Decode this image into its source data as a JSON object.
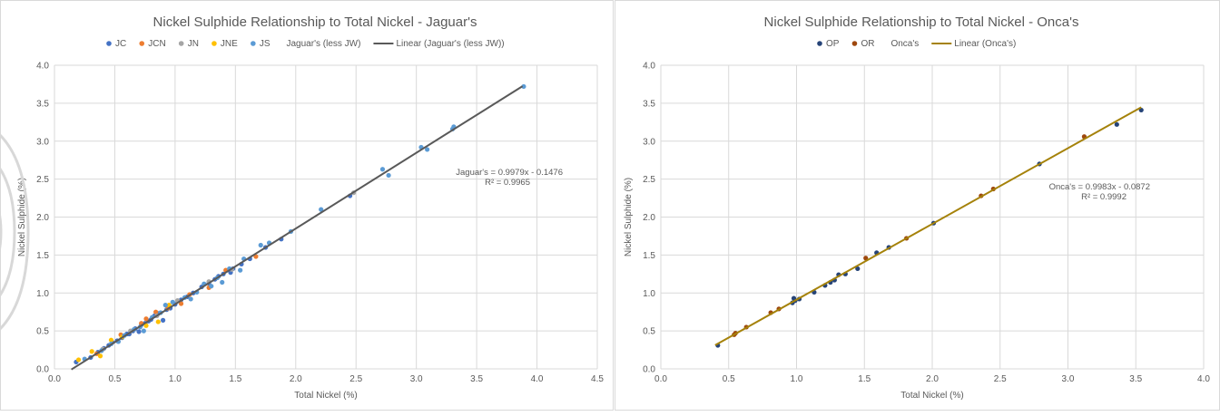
{
  "chart_data": [
    {
      "type": "scatter",
      "title": "Nickel Sulphide Relationship to Total Nickel - Jaguar's",
      "xlabel": "Total Nickel (%)",
      "ylabel": "Nickel Sulphide (%)",
      "xlim": [
        0,
        4.5
      ],
      "ylim": [
        0,
        4.0
      ],
      "xticks": [
        "0.0",
        "0.5",
        "1.0",
        "1.5",
        "2.0",
        "2.5",
        "3.0",
        "3.5",
        "4.0",
        "4.5"
      ],
      "yticks": [
        "0.0",
        "0.5",
        "1.0",
        "1.5",
        "2.0",
        "2.5",
        "3.0",
        "3.5",
        "4.0"
      ],
      "grid": true,
      "legend_position": "top",
      "legend": [
        {
          "label": "JC",
          "kind": "marker",
          "color": "#4472c4"
        },
        {
          "label": "JCN",
          "kind": "marker",
          "color": "#ed7d31"
        },
        {
          "label": "JN",
          "kind": "marker",
          "color": "#a5a5a5"
        },
        {
          "label": "JNE",
          "kind": "marker",
          "color": "#ffc000"
        },
        {
          "label": "JS",
          "kind": "marker",
          "color": "#5b9bd5"
        },
        {
          "label": "Jaguar's (less JW)",
          "kind": "none",
          "color": "#ffffff"
        },
        {
          "label": "Linear (Jaguar's (less JW))",
          "kind": "line",
          "color": "#595959"
        }
      ],
      "trendline": {
        "slope": 0.9979,
        "intercept": -0.1476,
        "x_range": [
          0.14,
          3.88
        ],
        "color": "#595959"
      },
      "equation": [
        "Jaguar's = 0.9979x - 0.1476",
        "R² = 0.9965"
      ],
      "series": [
        {
          "name": "JC",
          "color": "#4472c4",
          "points": [
            [
              0.18,
              0.09
            ],
            [
              0.3,
              0.15
            ],
            [
              0.36,
              0.22
            ],
            [
              0.41,
              0.27
            ],
            [
              0.45,
              0.31
            ],
            [
              0.48,
              0.35
            ],
            [
              0.52,
              0.37
            ],
            [
              0.56,
              0.41
            ],
            [
              0.6,
              0.46
            ],
            [
              0.62,
              0.46
            ],
            [
              0.65,
              0.5
            ],
            [
              0.67,
              0.53
            ],
            [
              0.7,
              0.49
            ],
            [
              0.72,
              0.58
            ],
            [
              0.75,
              0.6
            ],
            [
              0.78,
              0.63
            ],
            [
              0.8,
              0.65
            ],
            [
              0.83,
              0.7
            ],
            [
              0.86,
              0.73
            ],
            [
              0.9,
              0.64
            ],
            [
              0.93,
              0.78
            ],
            [
              0.96,
              0.8
            ],
            [
              1.0,
              0.85
            ],
            [
              1.05,
              0.91
            ],
            [
              1.1,
              0.95
            ],
            [
              1.15,
              1.0
            ],
            [
              1.22,
              1.08
            ],
            [
              1.28,
              1.13
            ],
            [
              1.33,
              1.18
            ],
            [
              1.36,
              1.22
            ],
            [
              1.4,
              1.25
            ],
            [
              1.46,
              1.27
            ],
            [
              1.48,
              1.32
            ],
            [
              1.55,
              1.38
            ],
            [
              1.62,
              1.45
            ],
            [
              1.75,
              1.6
            ],
            [
              1.88,
              1.71
            ],
            [
              2.45,
              2.28
            ]
          ]
        },
        {
          "name": "JCN",
          "color": "#ed7d31",
          "points": [
            [
              0.35,
              0.2
            ],
            [
              0.55,
              0.45
            ],
            [
              0.72,
              0.6
            ],
            [
              0.76,
              0.66
            ],
            [
              0.84,
              0.75
            ],
            [
              0.94,
              0.8
            ],
            [
              1.05,
              0.86
            ],
            [
              1.12,
              0.98
            ],
            [
              1.28,
              1.07
            ],
            [
              1.42,
              1.3
            ],
            [
              1.67,
              1.48
            ]
          ]
        },
        {
          "name": "JN",
          "color": "#a5a5a5",
          "points": [
            [
              0.4,
              0.26
            ],
            [
              0.63,
              0.5
            ],
            [
              0.85,
              0.7
            ],
            [
              1.02,
              0.9
            ],
            [
              1.28,
              1.15
            ],
            [
              1.47,
              1.31
            ],
            [
              2.48,
              2.32
            ]
          ]
        },
        {
          "name": "JNE",
          "color": "#ffc000",
          "points": [
            [
              0.2,
              0.12
            ],
            [
              0.31,
              0.23
            ],
            [
              0.38,
              0.17
            ],
            [
              0.47,
              0.38
            ],
            [
              0.56,
              0.42
            ],
            [
              0.76,
              0.57
            ],
            [
              0.86,
              0.62
            ],
            [
              0.95,
              0.84
            ]
          ]
        },
        {
          "name": "JS",
          "color": "#5b9bd5",
          "points": [
            [
              0.25,
              0.13
            ],
            [
              0.39,
              0.24
            ],
            [
              0.47,
              0.33
            ],
            [
              0.53,
              0.36
            ],
            [
              0.58,
              0.44
            ],
            [
              0.66,
              0.52
            ],
            [
              0.71,
              0.55
            ],
            [
              0.74,
              0.5
            ],
            [
              0.81,
              0.68
            ],
            [
              0.88,
              0.74
            ],
            [
              0.92,
              0.84
            ],
            [
              0.98,
              0.88
            ],
            [
              1.08,
              0.94
            ],
            [
              1.13,
              0.92
            ],
            [
              1.18,
              1.01
            ],
            [
              1.24,
              1.12
            ],
            [
              1.3,
              1.09
            ],
            [
              1.35,
              1.2
            ],
            [
              1.39,
              1.14
            ],
            [
              1.45,
              1.32
            ],
            [
              1.54,
              1.3
            ],
            [
              1.57,
              1.45
            ],
            [
              1.71,
              1.63
            ],
            [
              1.78,
              1.66
            ],
            [
              1.96,
              1.81
            ],
            [
              2.21,
              2.1
            ],
            [
              2.72,
              2.63
            ],
            [
              2.77,
              2.55
            ],
            [
              3.04,
              2.92
            ],
            [
              3.09,
              2.89
            ],
            [
              3.3,
              3.16
            ],
            [
              3.31,
              3.19
            ],
            [
              3.89,
              3.72
            ]
          ]
        }
      ]
    },
    {
      "type": "scatter",
      "title": "Nickel Sulphide Relationship to Total Nickel - Onca's",
      "xlabel": "Total Nickel (%)",
      "ylabel": "Nickel Sulphide (%)",
      "xlim": [
        0,
        4.0
      ],
      "ylim": [
        0,
        4.0
      ],
      "xticks": [
        "0.0",
        "0.5",
        "1.0",
        "1.5",
        "2.0",
        "2.5",
        "3.0",
        "3.5",
        "4.0"
      ],
      "yticks": [
        "0.0",
        "0.5",
        "1.0",
        "1.5",
        "2.0",
        "2.5",
        "3.0",
        "3.5",
        "4.0"
      ],
      "grid": true,
      "legend_position": "top",
      "legend": [
        {
          "label": "OP",
          "kind": "marker",
          "color": "#264478"
        },
        {
          "label": "OR",
          "kind": "marker",
          "color": "#9e480e"
        },
        {
          "label": "Onca's",
          "kind": "none",
          "color": "#ffffff"
        },
        {
          "label": "Linear (Onca's)",
          "kind": "line",
          "color": "#a5820a"
        }
      ],
      "trendline": {
        "slope": 0.9983,
        "intercept": -0.0872,
        "x_range": [
          0.4,
          3.54
        ],
        "color": "#a5820a"
      },
      "equation": [
        "Onca's = 0.9983x - 0.0872",
        "R² = 0.9992"
      ],
      "series": [
        {
          "name": "OP",
          "color": "#264478",
          "points": [
            [
              0.42,
              0.31
            ],
            [
              0.97,
              0.87
            ],
            [
              0.98,
              0.93
            ],
            [
              0.99,
              0.9
            ],
            [
              1.02,
              0.92
            ],
            [
              1.13,
              1.01
            ],
            [
              1.21,
              1.1
            ],
            [
              1.25,
              1.14
            ],
            [
              1.28,
              1.17
            ],
            [
              1.31,
              1.24
            ],
            [
              1.36,
              1.25
            ],
            [
              1.45,
              1.32
            ],
            [
              1.59,
              1.53
            ],
            [
              1.68,
              1.6
            ],
            [
              2.01,
              1.92
            ],
            [
              2.79,
              2.7
            ],
            [
              3.36,
              3.22
            ],
            [
              3.54,
              3.41
            ]
          ]
        },
        {
          "name": "OR",
          "color": "#9e480e",
          "points": [
            [
              0.54,
              0.45
            ],
            [
              0.55,
              0.47
            ],
            [
              0.63,
              0.55
            ],
            [
              0.81,
              0.74
            ],
            [
              0.87,
              0.79
            ],
            [
              1.51,
              1.46
            ],
            [
              1.81,
              1.72
            ],
            [
              2.36,
              2.28
            ],
            [
              2.45,
              2.37
            ],
            [
              3.12,
              3.06
            ]
          ]
        }
      ]
    }
  ]
}
